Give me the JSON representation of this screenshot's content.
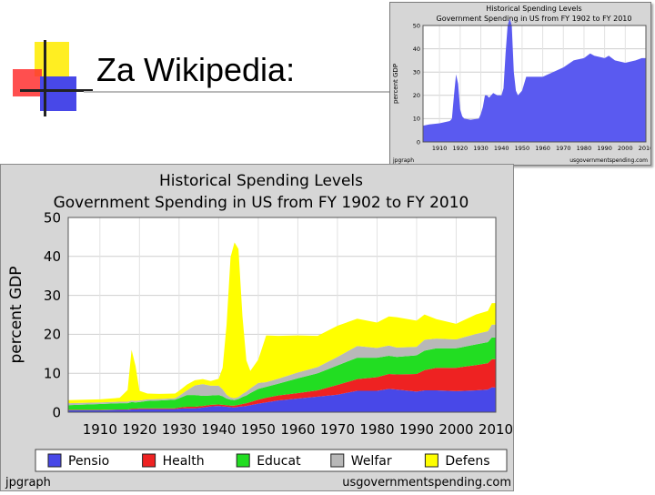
{
  "slide": {
    "title": "Za Wikipedia:"
  },
  "chart_data": [
    {
      "type": "area",
      "title": "Historical Spending Levels",
      "subtitle": "Government Spending in US from FY 1902 to FY 2010",
      "ylabel": "percent GDP",
      "xlabel": "",
      "ylim": [
        0,
        50
      ],
      "yticks": [
        0,
        10,
        20,
        30,
        40,
        50
      ],
      "xticks": [
        "1910",
        "1920",
        "1930",
        "1940",
        "1950",
        "1960",
        "1970",
        "1980",
        "1990",
        "2000",
        "2010"
      ],
      "grid": true,
      "legend": "none",
      "footer_left": "jpgraph",
      "footer_right": "usgovernmentspending.com",
      "colors": {
        "total": "#5a5af0"
      },
      "series": [
        {
          "x": [
            1902,
            1905,
            1910,
            1915,
            1916,
            1917,
            1918,
            1919,
            1920,
            1921,
            1922,
            1925,
            1929,
            1930,
            1931,
            1932,
            1933,
            1934,
            1936,
            1938,
            1940,
            1941,
            1942,
            1943,
            1944,
            1945,
            1946,
            1947,
            1948,
            1950,
            1952,
            1955,
            1960,
            1965,
            1970,
            1975,
            1980,
            1983,
            1985,
            1990,
            1992,
            1995,
            2000,
            2005,
            2008,
            2009,
            2010
          ],
          "values": [
            7,
            7.5,
            8,
            9,
            10,
            20,
            29,
            25,
            14,
            11,
            10,
            9.5,
            10,
            12,
            15,
            20,
            20,
            19,
            21,
            20,
            20,
            23,
            38,
            50,
            53,
            50,
            30,
            22,
            20,
            22,
            28,
            28,
            28,
            30,
            32,
            35,
            36,
            38,
            37,
            36,
            37,
            35,
            34,
            35,
            36,
            36,
            36
          ]
        }
      ]
    },
    {
      "type": "area",
      "title": "Historical Spending Levels",
      "subtitle": "Government Spending in US from FY 1902 to FY 2010",
      "ylabel": "percent GDP",
      "xlabel": "",
      "ylim": [
        0,
        50
      ],
      "yticks": [
        0,
        10,
        20,
        30,
        40,
        50
      ],
      "xticks": [
        "1910",
        "1920",
        "1930",
        "1940",
        "1950",
        "1960",
        "1970",
        "1980",
        "1990",
        "2000",
        "2010"
      ],
      "grid": true,
      "legend": "bottom",
      "footer_left": "jpgraph",
      "footer_right": "usgovernmentspending.com",
      "stacked": true,
      "x": [
        1902,
        1910,
        1915,
        1917,
        1918,
        1919,
        1920,
        1922,
        1925,
        1929,
        1930,
        1932,
        1934,
        1936,
        1938,
        1940,
        1941,
        1942,
        1943,
        1944,
        1945,
        1946,
        1947,
        1948,
        1950,
        1952,
        1955,
        1960,
        1965,
        1970,
        1975,
        1980,
        1983,
        1985,
        1990,
        1992,
        1995,
        2000,
        2005,
        2008,
        2009,
        2010
      ],
      "series": [
        {
          "name": "Pensio",
          "color": "#4848e8",
          "values": [
            0.5,
            0.5,
            0.6,
            0.6,
            0.7,
            0.7,
            0.8,
            0.8,
            0.8,
            0.8,
            0.9,
            1.0,
            1.0,
            1.2,
            1.5,
            1.6,
            1.5,
            1.4,
            1.3,
            1.2,
            1.4,
            1.5,
            1.6,
            1.8,
            2.2,
            2.5,
            3.0,
            3.5,
            4.0,
            4.5,
            5.5,
            5.5,
            6.0,
            5.8,
            5.3,
            5.6,
            5.6,
            5.4,
            5.6,
            5.8,
            6.4,
            6.3
          ]
        },
        {
          "name": "Health",
          "color": "#ee2222",
          "values": [
            0.1,
            0.1,
            0.1,
            0.1,
            0.2,
            0.2,
            0.2,
            0.2,
            0.2,
            0.2,
            0.3,
            0.4,
            0.4,
            0.4,
            0.4,
            0.4,
            0.4,
            0.4,
            0.4,
            0.5,
            0.5,
            0.6,
            0.7,
            0.8,
            1.0,
            1.2,
            1.3,
            1.4,
            1.6,
            2.5,
            3.0,
            3.5,
            3.8,
            3.9,
            4.5,
            5.2,
            5.8,
            6.0,
            6.5,
            6.8,
            7.2,
            7.3
          ]
        },
        {
          "name": "Educat",
          "color": "#22dd22",
          "values": [
            1.2,
            1.5,
            1.6,
            1.6,
            1.7,
            1.6,
            1.6,
            1.9,
            2.0,
            2.2,
            2.4,
            3.0,
            3.0,
            2.6,
            2.4,
            2.4,
            2.2,
            1.7,
            1.5,
            1.4,
            1.5,
            1.8,
            2.0,
            2.3,
            2.8,
            2.8,
            3.0,
            3.8,
            4.4,
            5.0,
            5.5,
            5.0,
            4.7,
            4.5,
            4.8,
            5.0,
            5.0,
            5.0,
            5.3,
            5.4,
            5.6,
            5.6
          ]
        },
        {
          "name": "Welfar",
          "color": "#b8b8b8",
          "values": [
            0.5,
            0.4,
            0.4,
            0.4,
            0.4,
            0.4,
            0.4,
            0.4,
            0.4,
            0.4,
            0.6,
            1.2,
            2.5,
            3.0,
            2.5,
            2.4,
            1.8,
            1.0,
            0.6,
            0.5,
            0.5,
            0.8,
            1.0,
            1.2,
            1.5,
            1.2,
            1.3,
            1.5,
            1.6,
            2.2,
            3.0,
            2.5,
            2.6,
            2.4,
            2.2,
            2.8,
            2.5,
            2.3,
            2.7,
            2.8,
            3.3,
            3.3
          ]
        },
        {
          "name": "Defens",
          "color": "#ffff00",
          "values": [
            0.8,
            0.8,
            1.0,
            3.0,
            13.0,
            9.0,
            2.5,
            1.5,
            1.3,
            1.2,
            1.3,
            1.5,
            1.3,
            1.3,
            1.2,
            1.8,
            5.5,
            18.0,
            36.0,
            40.0,
            38.0,
            20.0,
            8.0,
            4.5,
            6.0,
            12.0,
            11.0,
            9.5,
            8.0,
            8.0,
            7.0,
            6.5,
            7.5,
            7.8,
            6.7,
            6.5,
            5.0,
            4.0,
            5.0,
            5.2,
            5.5,
            5.5
          ]
        }
      ]
    }
  ]
}
